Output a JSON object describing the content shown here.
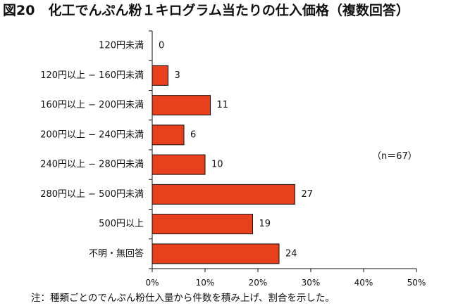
{
  "title": "図20　化工でんぷん粉１キログラム当たりの仕入価格（複数回答）",
  "note": "注：種類ごとのでんぷん粉仕入量から件数を積み上げ、割合を示した。",
  "colors": {
    "bar": "#e8401c",
    "bar_stroke": "#111111",
    "axis": "#111111"
  },
  "chart_data": {
    "type": "bar",
    "orientation": "horizontal",
    "title": "図20　化工でんぷん粉１キログラム当たりの仕入価格（複数回答）",
    "annotation": "（n＝67）",
    "categories": [
      "120円未満",
      "120円以上 − 160円未満",
      "160円以上 − 200円未満",
      "200円以上 − 240円未満",
      "240円以上 − 280円未満",
      "280円以上 − 500円未満",
      "500円以上",
      "不明・無回答"
    ],
    "values": [
      0,
      3,
      11,
      6,
      10,
      27,
      19,
      24
    ],
    "value_labels": [
      "0",
      "3",
      "11",
      "6",
      "10",
      "27",
      "19",
      "24"
    ],
    "value_unit": "percent",
    "xlim": [
      0,
      50
    ],
    "xticks": [
      0,
      10,
      20,
      30,
      40,
      50
    ],
    "xtick_labels": [
      "0%",
      "10%",
      "20%",
      "30%",
      "40%",
      "50%"
    ],
    "xlabel": "",
    "ylabel": "",
    "grid": false,
    "legend": "none"
  }
}
